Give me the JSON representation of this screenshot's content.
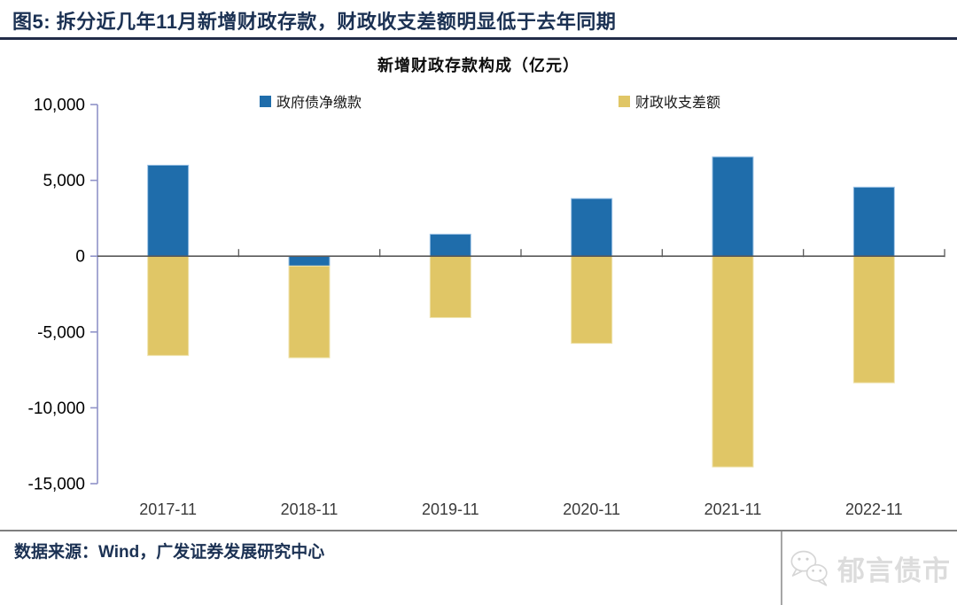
{
  "header": {
    "title": "图5:  拆分近几年11月新增财政存款，财政收支差额明显低于去年同期"
  },
  "chart_data": {
    "type": "bar",
    "stacked": true,
    "title": "新增财政存款构成（亿元）",
    "categories": [
      "2017-11",
      "2018-11",
      "2019-11",
      "2020-11",
      "2021-11",
      "2022-11"
    ],
    "series": [
      {
        "name": "政府债净缴款",
        "color": "#1F6DAB",
        "edge": "#9DC3E6",
        "values": [
          6000,
          -650,
          1450,
          3800,
          6550,
          4550
        ]
      },
      {
        "name": "财政收支差额",
        "color": "#E0C666",
        "edge": "#EFE3AE",
        "values": [
          -6550,
          -6050,
          -4050,
          -5750,
          -13900,
          -8350
        ]
      }
    ],
    "ylim": [
      -15000,
      10000
    ],
    "yticks": [
      {
        "value": 10000,
        "label": "10,000"
      },
      {
        "value": 5000,
        "label": "5,000"
      },
      {
        "value": 0,
        "label": "0"
      },
      {
        "value": -5000,
        "label": "-5,000"
      },
      {
        "value": -10000,
        "label": "-10,000"
      },
      {
        "value": -15000,
        "label": "-15,000"
      }
    ],
    "legend_position": "top",
    "grid": false,
    "axis_color": "#9093C8",
    "zero_line_color": "#595959"
  },
  "footer": {
    "source": "数据来源：Wind，广发证券发展研究中心",
    "logo_text": "郁言债市",
    "logo_icon": "wechat-icon"
  },
  "colors": {
    "accent_navy": "#1B3153",
    "bar_blue": "#1F6DAB",
    "bar_yellow": "#E0C666",
    "axis_purple": "#9093C8",
    "zero_line": "#595959",
    "divider_gray": "#7F7F7F",
    "logo_gray": "#DCDCDC"
  }
}
